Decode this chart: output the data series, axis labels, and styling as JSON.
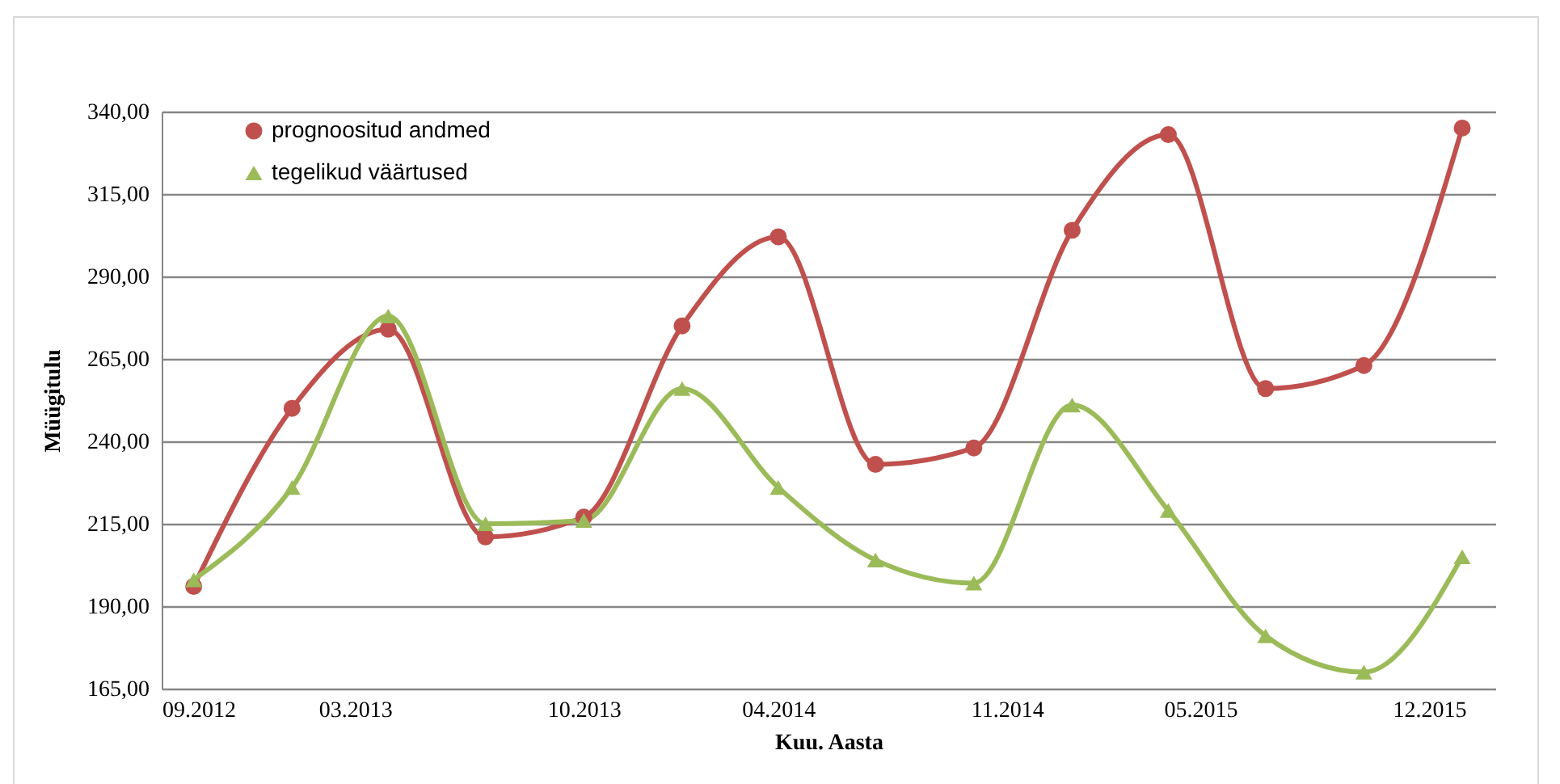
{
  "chart_data": {
    "type": "line",
    "xlabel": "Kuu. Aasta",
    "ylabel": "Müügitulu",
    "x": [
      "2012-10",
      "2013-01",
      "2013-04",
      "2013-07",
      "2013-10",
      "2014-01",
      "2014-04",
      "2014-07",
      "2014-10",
      "2015-01",
      "2015-04",
      "2015-07",
      "2015-10",
      "2016-01"
    ],
    "series": [
      {
        "name": "prognoositud andmed",
        "color": "#c0504d",
        "marker": "circle",
        "values": [
          196,
          250,
          274,
          211,
          217,
          275,
          302,
          233,
          238,
          304,
          333,
          256,
          263,
          335
        ]
      },
      {
        "name": "tegelikud väärtused",
        "color": "#9bbb59",
        "marker": "triangle",
        "values": [
          198,
          226,
          278,
          215,
          216,
          256,
          226,
          204,
          197,
          251,
          219,
          181,
          170,
          205
        ]
      }
    ],
    "xlim": [
      "2012-09",
      "2016-02"
    ],
    "xticks": [
      {
        "value": "2012-09",
        "label": "09.2012"
      },
      {
        "value": "2013-03",
        "label": "03.2013"
      },
      {
        "value": "2013-10",
        "label": "10.2013"
      },
      {
        "value": "2014-04",
        "label": "04.2014"
      },
      {
        "value": "2014-11",
        "label": "11.2014"
      },
      {
        "value": "2015-05",
        "label": "05.2015"
      },
      {
        "value": "2015-12",
        "label": "12.2015"
      }
    ],
    "ylim": [
      165,
      340
    ],
    "yticks": [
      {
        "value": 165,
        "label": "165,00"
      },
      {
        "value": 190,
        "label": "190,00"
      },
      {
        "value": 215,
        "label": "215,00"
      },
      {
        "value": 240,
        "label": "240,00"
      },
      {
        "value": 265,
        "label": "265,00"
      },
      {
        "value": 290,
        "label": "290,00"
      },
      {
        "value": 315,
        "label": "315,00"
      },
      {
        "value": 340,
        "label": "340,00"
      }
    ],
    "grid": "y",
    "legend": "top left"
  }
}
